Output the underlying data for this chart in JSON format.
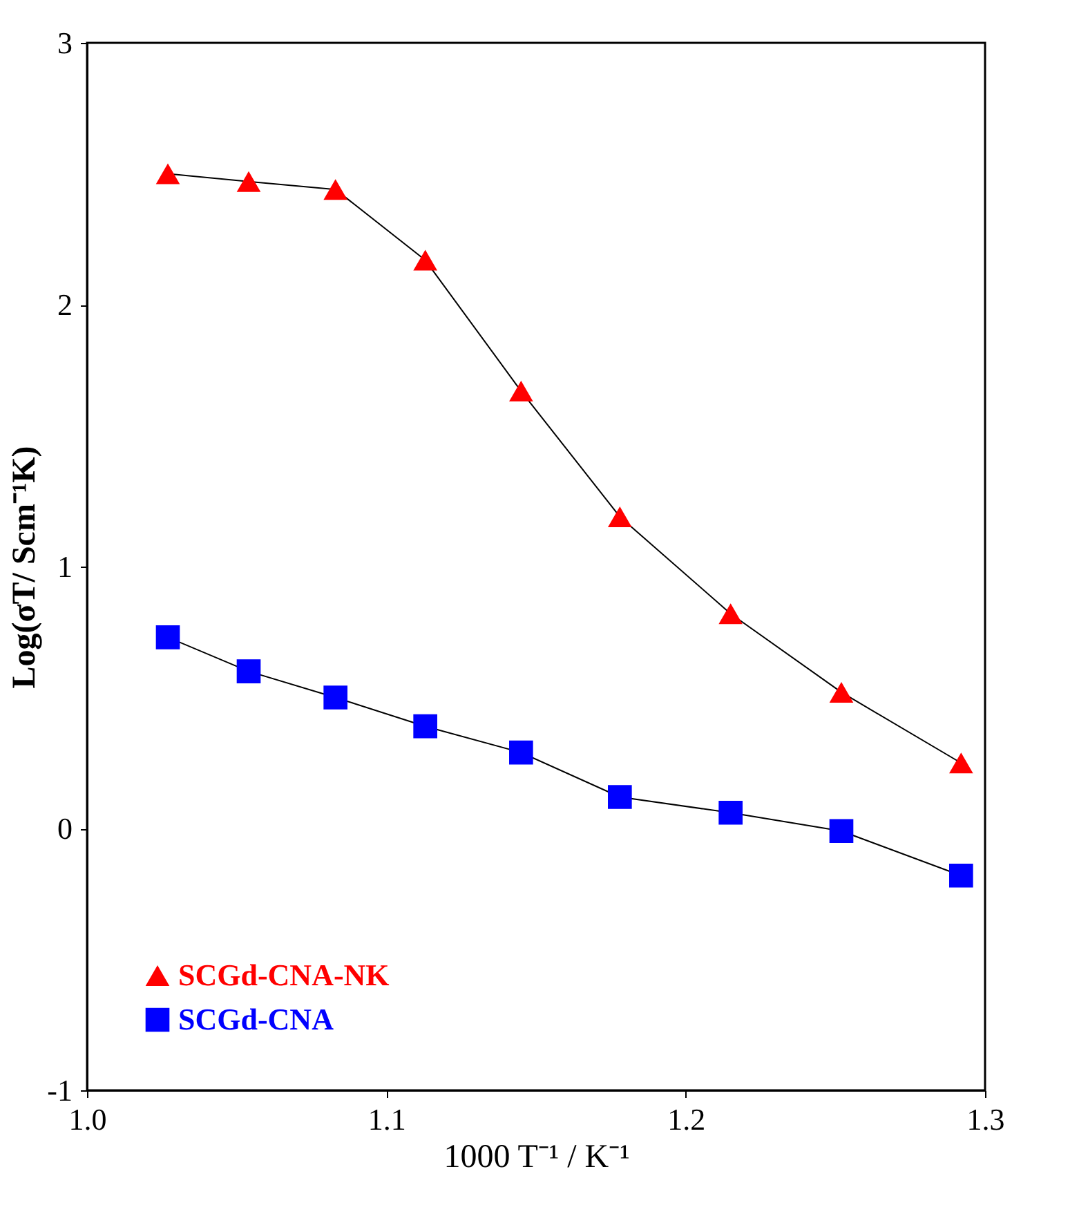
{
  "chart_data": {
    "type": "line",
    "xlabel": "1000 T⁻¹ / K⁻¹",
    "ylabel": "Log(σT/ Scm⁻¹K)",
    "xlim": [
      1.0,
      1.3
    ],
    "xticks": [
      {
        "value": 1.0,
        "label": "1.0"
      },
      {
        "value": 1.1,
        "label": "1.1"
      },
      {
        "value": 1.2,
        "label": "1.2"
      },
      {
        "value": 1.3,
        "label": "1.3"
      }
    ],
    "ylim": [
      -1,
      3
    ],
    "yticks": [
      -1,
      0,
      1,
      2,
      3
    ],
    "grid": false,
    "legend": "bottom left",
    "line_style": "solid",
    "x": [
      1.027,
      1.054,
      1.083,
      1.113,
      1.145,
      1.178,
      1.215,
      1.252,
      1.292
    ],
    "series": [
      {
        "name": "SCGd-CNA-NK",
        "color": "#ff0000",
        "marker": "triangle",
        "values": [
          2.5,
          2.47,
          2.44,
          2.17,
          1.67,
          1.19,
          0.82,
          0.52,
          0.25
        ]
      },
      {
        "name": "SCGd-CNA",
        "color": "#0000ff",
        "marker": "square",
        "values": [
          0.73,
          0.6,
          0.5,
          0.39,
          0.29,
          0.12,
          0.06,
          -0.01,
          -0.18
        ]
      }
    ]
  }
}
